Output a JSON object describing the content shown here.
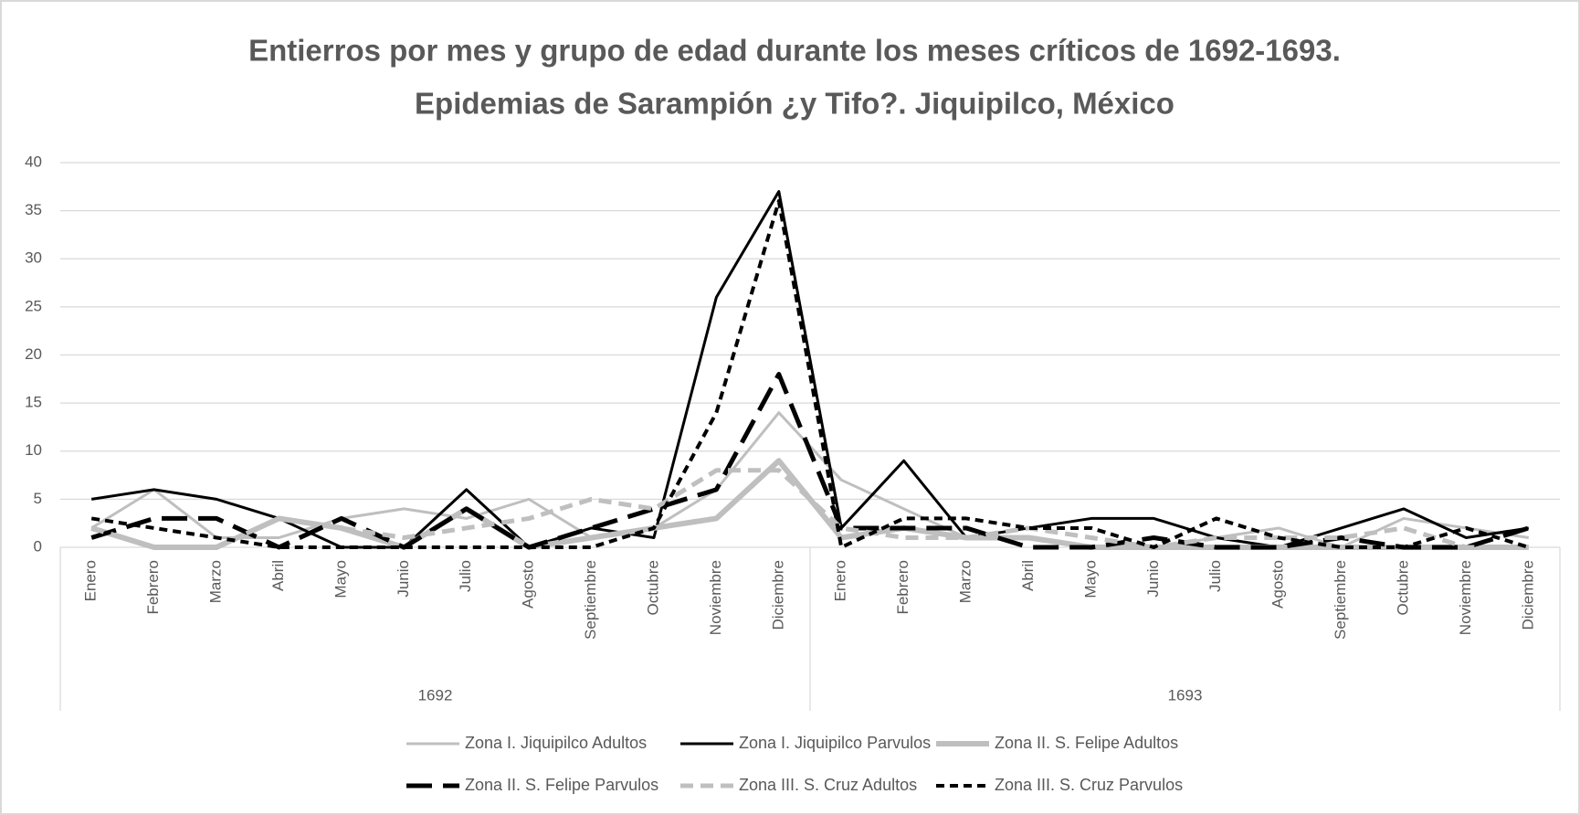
{
  "chart_data": {
    "type": "line",
    "title": [
      "Entierros por mes y grupo de edad durante los meses críticos de 1692-1693.",
      "Epidemias de Sarampión ¿y Tifo?. Jiquipilco, México"
    ],
    "categories": [
      "Enero",
      "Febrero",
      "Marzo",
      "Abril",
      "Mayo",
      "Junio",
      "Julio",
      "Agosto",
      "Septiembre",
      "Octubre",
      "Noviembre",
      "Diciembre",
      "Enero",
      "Febrero",
      "Marzo",
      "Abril",
      "Mayo",
      "Junio",
      "Julio",
      "Agosto",
      "Septiembre",
      "Octubre",
      "Noviembre",
      "Diciembre"
    ],
    "groups": [
      "1692",
      "1693"
    ],
    "ylim": [
      0,
      40
    ],
    "yticks": [
      0,
      5,
      10,
      15,
      20,
      25,
      30,
      35,
      40
    ],
    "grid": true,
    "legend": "bottom",
    "series": [
      {
        "name": "Zona I. Jiquipilco Adultos",
        "color": "#bfbfbf",
        "style": "thin",
        "values": [
          2,
          6,
          1,
          1,
          3,
          4,
          3,
          5,
          1,
          2,
          6,
          14,
          7,
          4,
          1,
          1,
          0,
          0,
          1,
          2,
          0,
          3,
          2,
          1
        ]
      },
      {
        "name": "Zona I. Jiquipilco Parvulos",
        "color": "#000000",
        "style": "thin",
        "values": [
          5,
          6,
          5,
          3,
          0,
          0,
          6,
          0,
          2,
          1,
          26,
          37,
          2,
          9,
          1,
          2,
          3,
          3,
          1,
          0,
          2,
          4,
          1,
          2
        ]
      },
      {
        "name": "Zona II. S. Felipe Adultos",
        "color": "#bfbfbf",
        "style": "thick",
        "values": [
          2,
          0,
          0,
          3,
          2,
          0,
          4,
          0,
          1,
          2,
          3,
          9,
          1,
          2,
          1,
          1,
          0,
          0,
          0,
          0,
          0,
          0,
          0,
          0
        ]
      },
      {
        "name": "Zona II. S. Felipe Parvulos",
        "color": "#000000",
        "style": "longdash",
        "values": [
          1,
          3,
          3,
          0,
          3,
          0,
          4,
          0,
          2,
          4,
          6,
          18,
          2,
          2,
          2,
          0,
          0,
          1,
          0,
          0,
          1,
          0,
          0,
          2
        ]
      },
      {
        "name": "Zona III. S. Cruz Adultos",
        "color": "#bfbfbf",
        "style": "dash",
        "values": [
          2,
          0,
          0,
          3,
          2,
          1,
          2,
          3,
          5,
          4,
          8,
          8,
          2,
          1,
          1,
          2,
          1,
          0,
          1,
          1,
          1,
          2,
          0,
          0
        ]
      },
      {
        "name": "Zona III. S. Cruz Parvulos",
        "color": "#000000",
        "style": "shortdash",
        "values": [
          3,
          2,
          1,
          0,
          0,
          0,
          0,
          0,
          0,
          2,
          14,
          36,
          0,
          3,
          3,
          2,
          2,
          0,
          3,
          1,
          0,
          0,
          2,
          0
        ]
      }
    ]
  }
}
